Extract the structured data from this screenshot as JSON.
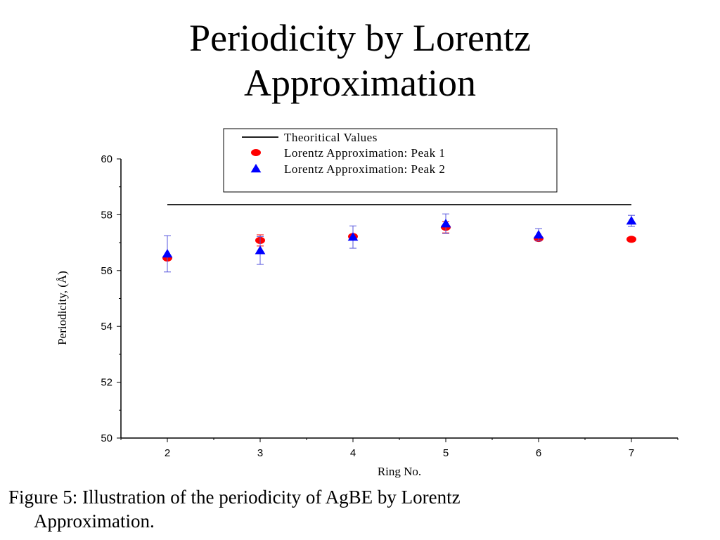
{
  "slide": {
    "title_line1": "Periodicity by Lorentz",
    "title_line2": "Approximation",
    "caption_line1": "Figure 5: Illustration of  the periodicity of  AgBE by Lorentz",
    "caption_line2": "Approximation."
  },
  "chart_data": {
    "type": "scatter",
    "xlabel": "Ring No.",
    "ylabel": "Periodicity, (Å)",
    "xlim": [
      1.5,
      7.5
    ],
    "ylim": [
      50,
      60
    ],
    "xticks": [
      2,
      3,
      4,
      5,
      6,
      7
    ],
    "yticks": [
      50,
      52,
      54,
      56,
      58,
      60
    ],
    "grid": false,
    "legend_position": "top-right",
    "series": [
      {
        "name": "Theoritical Values",
        "kind": "line",
        "color": "#000000",
        "x": [
          2,
          7
        ],
        "y": [
          58.36,
          58.36
        ]
      },
      {
        "name": "Lorentz Approximation: Peak 1",
        "kind": "marker",
        "marker": "circle",
        "color": "#ff0000",
        "x": [
          2,
          3,
          4,
          5,
          6,
          7
        ],
        "y": [
          56.45,
          57.08,
          57.22,
          57.55,
          57.15,
          57.12
        ],
        "err": [
          0,
          0.2,
          0,
          0.2,
          0,
          0
        ]
      },
      {
        "name": "Lorentz Approximation: Peak 2",
        "kind": "marker",
        "marker": "triangle",
        "color": "#0000ff",
        "errcolor": "#5555dd",
        "x": [
          2,
          3,
          4,
          5,
          6,
          7
        ],
        "y": [
          56.6,
          56.72,
          57.2,
          57.68,
          57.28,
          57.78
        ],
        "err": [
          0.65,
          0.5,
          0.4,
          0.35,
          0.22,
          0.2
        ]
      }
    ]
  }
}
